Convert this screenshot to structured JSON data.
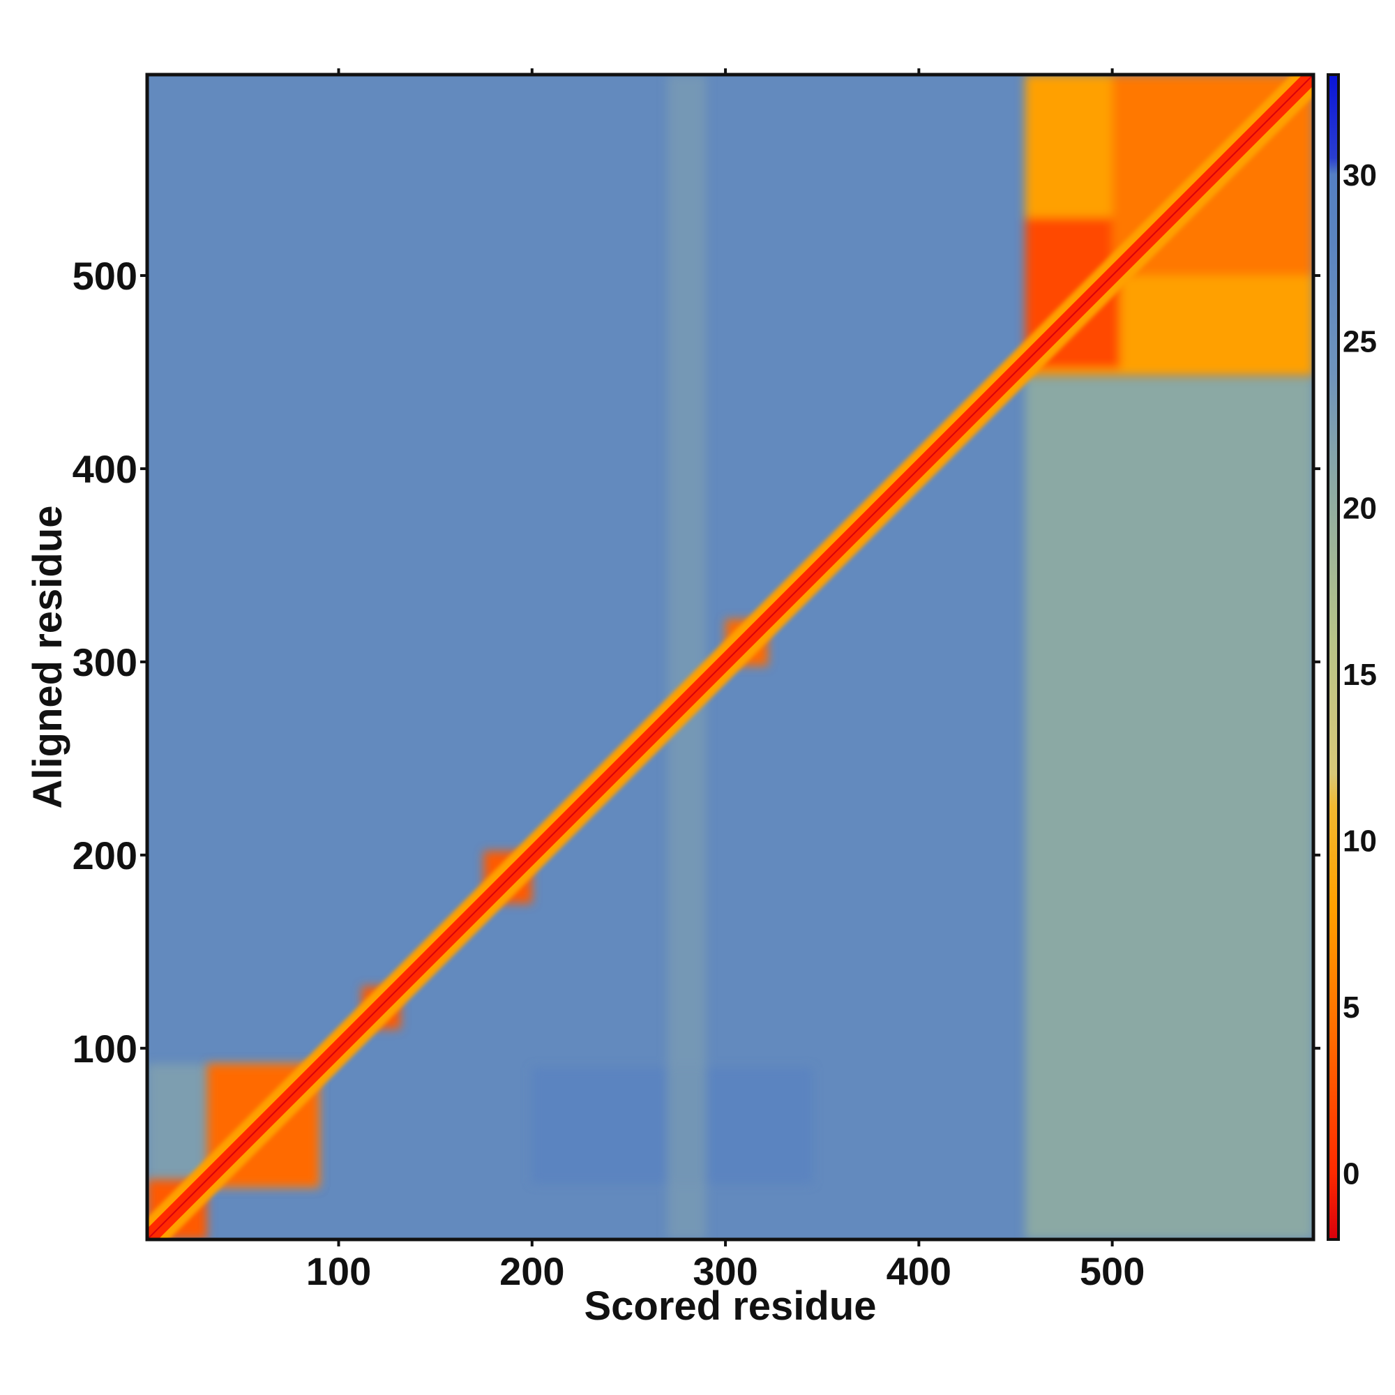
{
  "chart_data": {
    "type": "heatmap",
    "title": "",
    "xlabel": "Scored residue",
    "ylabel": "Aligned residue",
    "xlim": [
      1,
      604
    ],
    "ylim": [
      1,
      604
    ],
    "x_ticks": [
      100,
      200,
      300,
      400,
      500
    ],
    "y_ticks": [
      100,
      200,
      300,
      400,
      500
    ],
    "colorbar": {
      "ticks": [
        0,
        5,
        10,
        15,
        20,
        25,
        30
      ],
      "range": [
        -2,
        33
      ],
      "stops": [
        {
          "value": -2,
          "color": "#d8000c"
        },
        {
          "value": 0,
          "color": "#ff2a00"
        },
        {
          "value": 4,
          "color": "#ff6a00"
        },
        {
          "value": 8,
          "color": "#ffa000"
        },
        {
          "value": 11,
          "color": "#f2b830"
        },
        {
          "value": 12,
          "color": "#d8c878"
        },
        {
          "value": 16,
          "color": "#b8c488"
        },
        {
          "value": 20,
          "color": "#92aea0"
        },
        {
          "value": 24,
          "color": "#6f93bb"
        },
        {
          "value": 28,
          "color": "#5b84c0"
        },
        {
          "value": 30,
          "color": "#5580c2"
        },
        {
          "value": 30.5,
          "color": "#2a3ed0"
        },
        {
          "value": 33,
          "color": "#0a14d8"
        }
      ]
    },
    "background_value": 26.5,
    "diagonal": {
      "value": 0,
      "band_halfwidth": 4
    },
    "blocks": [
      {
        "x": [
          1,
          32
        ],
        "y": [
          1,
          32
        ],
        "value": 3
      },
      {
        "x": [
          32,
          90
        ],
        "y": [
          28,
          92
        ],
        "value": 4
      },
      {
        "x": [
          112,
          132
        ],
        "y": [
          110,
          132
        ],
        "value": 3
      },
      {
        "x": [
          175,
          200
        ],
        "y": [
          175,
          202
        ],
        "value": 3
      },
      {
        "x": [
          300,
          322
        ],
        "y": [
          298,
          322
        ],
        "value": 4
      },
      {
        "x": [
          455,
          604
        ],
        "y": [
          448,
          604
        ],
        "value": 8
      },
      {
        "x": [
          455,
          504
        ],
        "y": [
          452,
          530
        ],
        "value": 2
      },
      {
        "x": [
          500,
          604
        ],
        "y": [
          500,
          604
        ],
        "value": 5
      }
    ],
    "regions": [
      {
        "x": [
          455,
          604
        ],
        "y": [
          1,
          448
        ],
        "value": 20
      },
      {
        "x": [
          1,
          90
        ],
        "y": [
          28,
          92
        ],
        "value": 22
      },
      {
        "x": [
          200,
          345
        ],
        "y": [
          30,
          90
        ],
        "value": 28.5
      },
      {
        "x": [
          270,
          290
        ],
        "y": [
          1,
          604
        ],
        "value": 23
      }
    ],
    "grid": false,
    "legend": "colorbar-right"
  }
}
